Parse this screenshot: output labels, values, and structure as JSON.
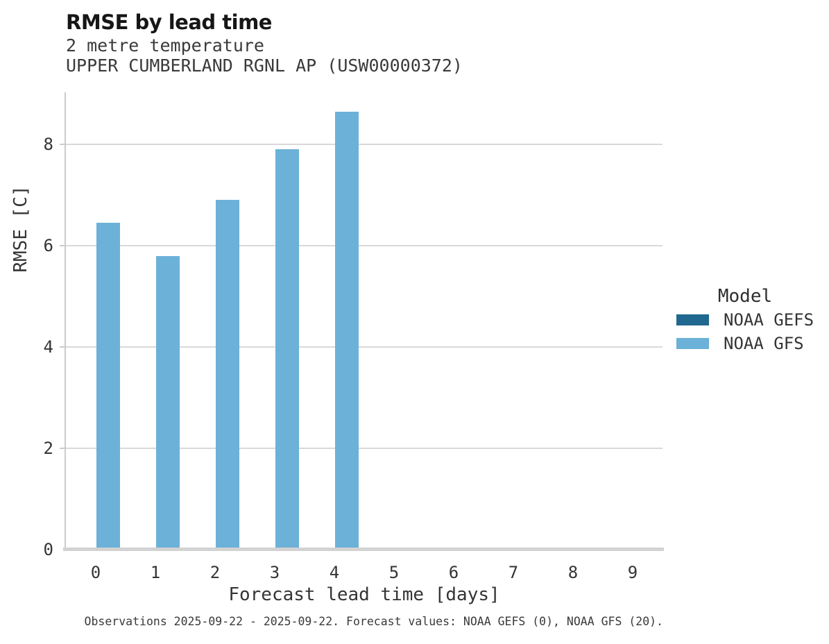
{
  "chart_data": {
    "type": "bar",
    "title": "RMSE by lead time",
    "subtitle1": "2 metre temperature",
    "subtitle2": "UPPER CUMBERLAND RGNL AP (USW00000372)",
    "xlabel": "Forecast lead time [days]",
    "ylabel": "RMSE [C]",
    "categories": [
      "0",
      "1",
      "2",
      "3",
      "4",
      "5",
      "6",
      "7",
      "8",
      "9"
    ],
    "series": [
      {
        "name": "NOAA GEFS",
        "color": "#20688f",
        "values": [
          null,
          null,
          null,
          null,
          null,
          null,
          null,
          null,
          null,
          null
        ]
      },
      {
        "name": "NOAA GFS",
        "color": "#6cb1d8",
        "values": [
          6.45,
          5.8,
          6.9,
          7.9,
          8.65,
          null,
          null,
          null,
          null,
          null
        ]
      }
    ],
    "ylim": [
      0,
      9.03
    ],
    "yticks": [
      0,
      2,
      4,
      6,
      8
    ],
    "grid": "horizontal",
    "legend_title": "Model",
    "legend_position": "right",
    "footer": "Observations 2025-09-22 - 2025-09-22. Forecast values: NOAA GEFS (0), NOAA GFS (20)."
  },
  "colors": {
    "gridline": "#d9d9d9",
    "axis_line": "#cbcbcb",
    "baseline": "#d2d2d2",
    "bar_gfs": "#6cb1d8",
    "bar_gefs": "#20688f",
    "text": "#343434",
    "title_text": "#161616"
  }
}
